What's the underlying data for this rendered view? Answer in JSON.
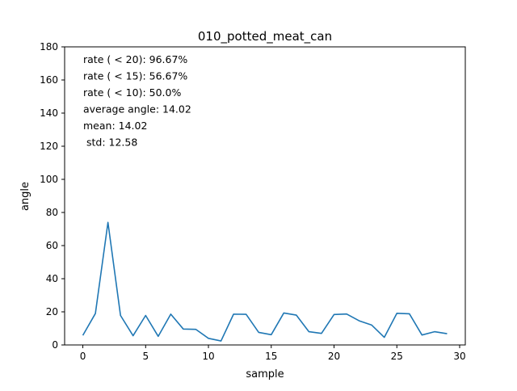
{
  "chart_data": {
    "type": "line",
    "title": "010_potted_meat_can",
    "xlabel": "sample",
    "ylabel": "angle",
    "xlim": [
      -1.45,
      30.45
    ],
    "ylim": [
      0,
      180
    ],
    "xticks": [
      0,
      5,
      10,
      15,
      20,
      25,
      30
    ],
    "yticks": [
      0,
      20,
      40,
      60,
      80,
      100,
      120,
      140,
      160,
      180
    ],
    "grid": false,
    "line_color": "#1f77b4",
    "annotations": [
      "rate ( < 20): 96.67%",
      "rate ( < 15): 56.67%",
      "rate ( < 10): 50.0%",
      "average angle: 14.02",
      "mean: 14.02",
      " std: 12.58"
    ],
    "series": [
      {
        "x": [
          0,
          1,
          2,
          3,
          4,
          5,
          6,
          7,
          8,
          9,
          10,
          11,
          12,
          13,
          14,
          15,
          16,
          17,
          18,
          19,
          20,
          21,
          22,
          23,
          24,
          25,
          26,
          27,
          28,
          29
        ],
        "values": [
          5.8,
          19.0,
          74.0,
          17.8,
          5.6,
          17.8,
          5.2,
          18.6,
          9.6,
          9.4,
          4.0,
          2.4,
          18.6,
          18.5,
          7.6,
          6.2,
          19.3,
          18.0,
          8.0,
          7.0,
          18.4,
          18.7,
          14.6,
          12.0,
          4.6,
          19.1,
          18.8,
          6.0,
          8.0,
          6.8
        ]
      }
    ]
  }
}
